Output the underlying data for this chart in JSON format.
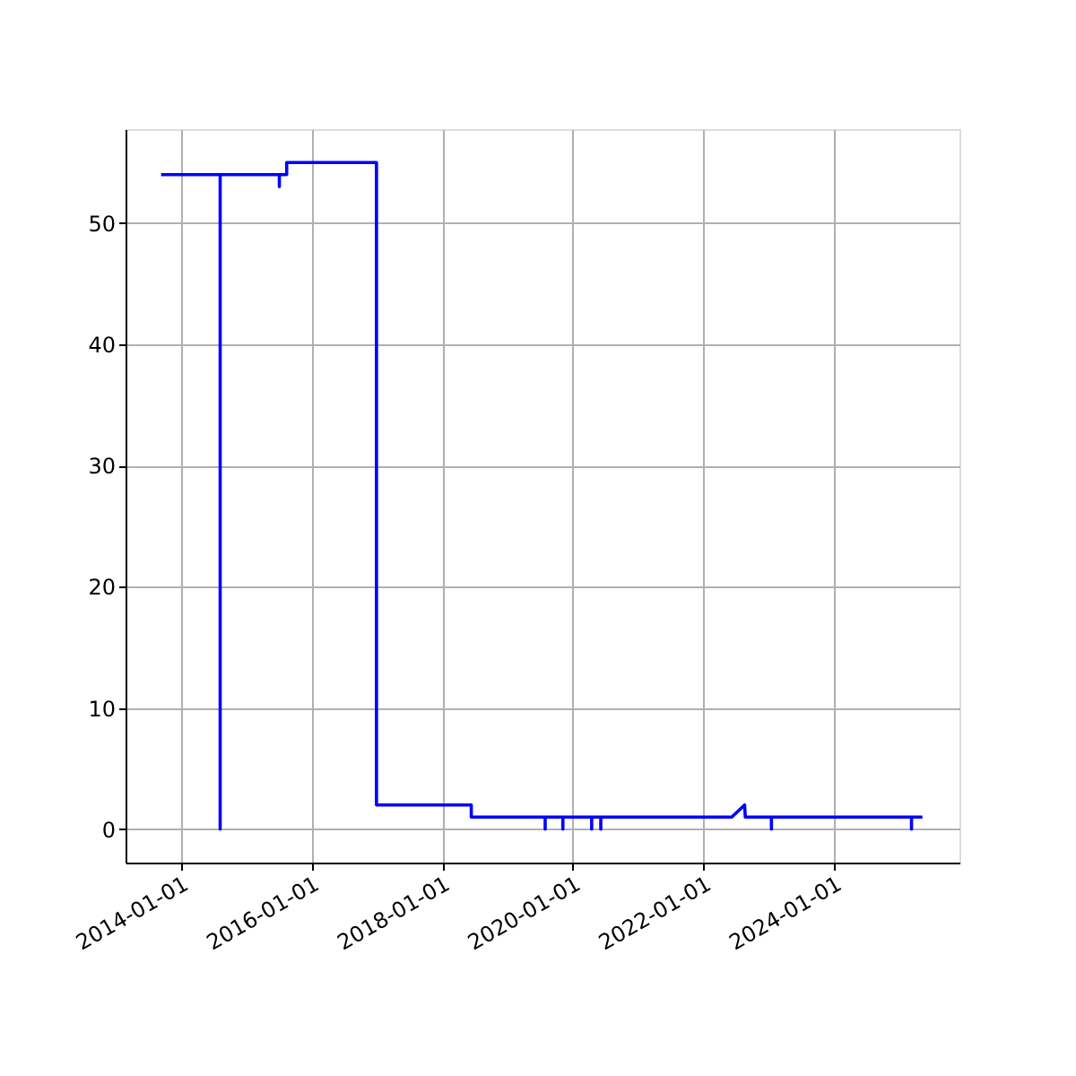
{
  "chart_data": {
    "type": "line",
    "x": [
      "2013-09-12",
      "2014-08-08",
      "2014-08-08",
      "2014-08-08",
      "2015-07-05",
      "2015-07-05",
      "2015-07-05",
      "2015-08-15",
      "2015-08-15",
      "2016-12-29",
      "2016-12-29",
      "2018-06-12",
      "2018-06-12",
      "2019-07-30",
      "2019-07-30",
      "2019-07-30",
      "2019-11-06",
      "2019-11-06",
      "2019-11-06",
      "2020-04-15",
      "2020-04-15",
      "2020-04-15",
      "2020-06-05",
      "2020-06-05",
      "2020-06-05",
      "2022-06-07",
      "2022-08-18",
      "2022-08-22",
      "2023-01-15",
      "2023-01-15",
      "2023-01-15",
      "2025-03-08",
      "2025-03-08",
      "2025-03-08",
      "2025-05-08"
    ],
    "series": [
      {
        "color": "#0000ff",
        "values": [
          54,
          54,
          0,
          54,
          54,
          53,
          54,
          54,
          55,
          55,
          2,
          2,
          1,
          1,
          0,
          1,
          1,
          0,
          1,
          1,
          0,
          1,
          1,
          0,
          1,
          1,
          2,
          1,
          1,
          0,
          1,
          1,
          0,
          1,
          1
        ]
      }
    ],
    "xlim": [
      "2013-02-25",
      "2025-12-01"
    ],
    "xticks": [
      {
        "value": "2014-01-01",
        "label": "2014-01-01"
      },
      {
        "value": "2016-01-01",
        "label": "2016-01-01"
      },
      {
        "value": "2018-01-01",
        "label": "2018-01-01"
      },
      {
        "value": "2020-01-01",
        "label": "2020-01-01"
      },
      {
        "value": "2022-01-01",
        "label": "2022-01-01"
      },
      {
        "value": "2024-01-01",
        "label": "2024-01-01"
      }
    ],
    "ylim": [
      -2.75,
      57.75
    ],
    "yticks": [
      0,
      10,
      20,
      30,
      40,
      50
    ],
    "grid": true,
    "marker": "none",
    "line_style": "solid"
  }
}
